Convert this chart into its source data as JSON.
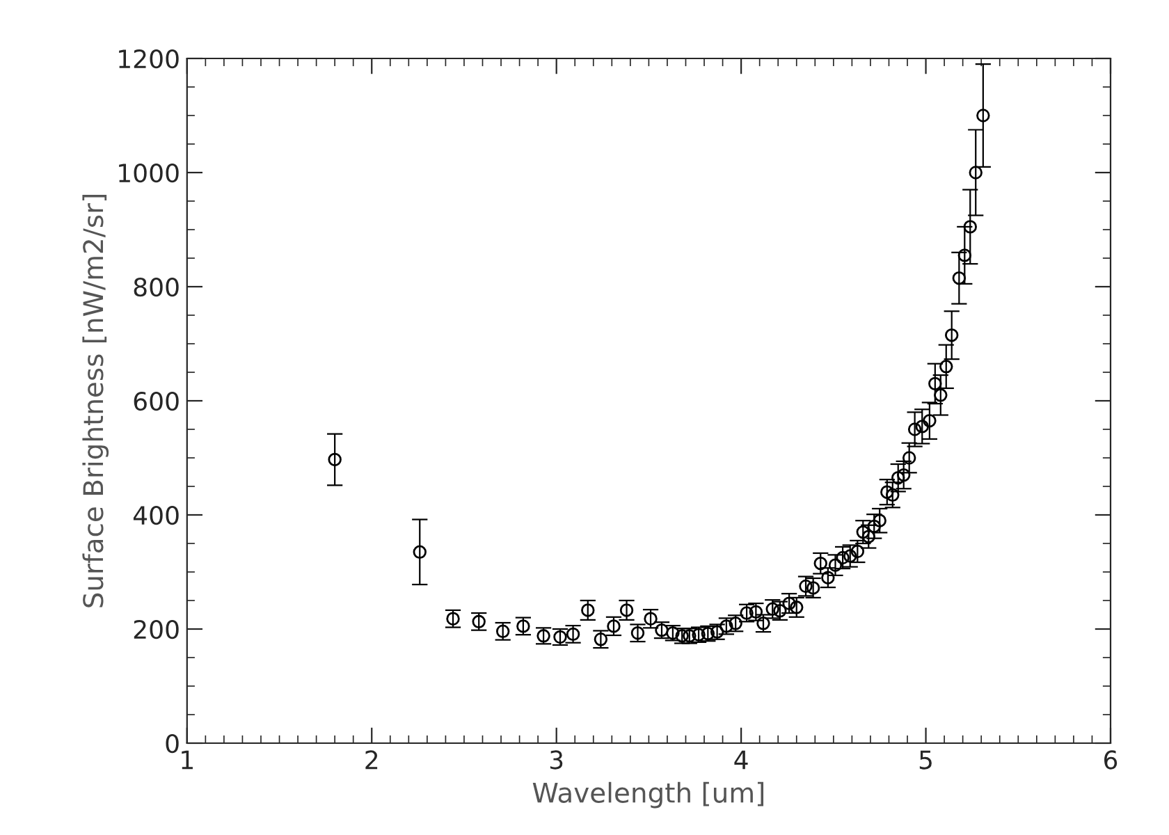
{
  "chart_data": {
    "type": "scatter",
    "xlabel": "Wavelength [um]",
    "ylabel": "Surface Brightness [nW/m2/sr]",
    "xlim": [
      1,
      6
    ],
    "xticks": [
      1,
      2,
      3,
      4,
      5,
      6
    ],
    "ylim": [
      0,
      1200
    ],
    "yticks": [
      0,
      200,
      400,
      600,
      800,
      1000,
      1200
    ],
    "marker": "circle",
    "grid": false,
    "color": "#000000",
    "x": [
      1.8,
      2.26,
      2.44,
      2.58,
      2.71,
      2.82,
      2.93,
      3.02,
      3.09,
      3.17,
      3.24,
      3.31,
      3.38,
      3.44,
      3.51,
      3.57,
      3.63,
      3.68,
      3.72,
      3.77,
      3.82,
      3.87,
      3.92,
      3.97,
      4.03,
      4.08,
      4.12,
      4.17,
      4.21,
      4.26,
      4.3,
      4.35,
      4.39,
      4.43,
      4.47,
      4.51,
      4.55,
      4.59,
      4.63,
      4.66,
      4.69,
      4.72,
      4.75,
      4.79,
      4.82,
      4.85,
      4.88,
      4.91,
      4.94,
      4.98,
      5.02,
      5.05,
      5.08,
      5.11,
      5.14,
      5.18,
      5.21,
      5.24,
      5.27,
      5.31
    ],
    "values": [
      497,
      335,
      218,
      213,
      196,
      205,
      188,
      186,
      191,
      233,
      182,
      205,
      233,
      193,
      218,
      198,
      193,
      188,
      188,
      190,
      192,
      195,
      205,
      210,
      228,
      230,
      210,
      235,
      232,
      245,
      238,
      275,
      272,
      315,
      290,
      312,
      325,
      328,
      336,
      370,
      362,
      380,
      390,
      440,
      435,
      465,
      470,
      500,
      550,
      555,
      565,
      630,
      610,
      660,
      715,
      815,
      855,
      905,
      1000,
      1100
    ],
    "errors": [
      45,
      57,
      15,
      15,
      15,
      15,
      14,
      14,
      15,
      17,
      15,
      16,
      17,
      15,
      16,
      14,
      13,
      13,
      13,
      13,
      13,
      13,
      14,
      14,
      15,
      15,
      15,
      16,
      16,
      17,
      17,
      17,
      17,
      18,
      17,
      18,
      19,
      19,
      19,
      20,
      20,
      21,
      21,
      22,
      22,
      24,
      24,
      26,
      30,
      30,
      32,
      35,
      35,
      38,
      42,
      45,
      50,
      65,
      75,
      90
    ]
  }
}
